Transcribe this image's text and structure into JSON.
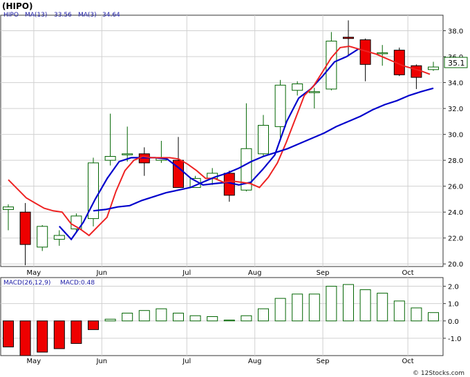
{
  "header": {
    "title": "(HIPO)",
    "main_legend": {
      "symbol": "HIPO",
      "ma13_label": "MA(13)",
      "ma13_value": "33.56",
      "ma3_label": "MA(3)",
      "ma3_value": "34.64"
    },
    "macd_legend": {
      "label": "MACD(26,12,9)",
      "value_label": "MACD:0.48"
    },
    "last_price_badge": "35.1",
    "watermark": "© 12Stocks.com"
  },
  "colors": {
    "up_candle_border": "#006400",
    "down_candle_fill": "#ee0000",
    "ma13": "#0000cc",
    "ma3": "#ee2222",
    "macd_bar_border": "#006400",
    "macd_negative_fill": "#ee0000",
    "grid": "#d0d0d0",
    "legend_text": "#1a1aa6"
  },
  "chart_data": [
    {
      "type": "candlestick",
      "title": "HIPO",
      "ylim": [
        19.8,
        39.2
      ],
      "y_ticks": [
        20.0,
        22.0,
        24.0,
        26.0,
        28.0,
        30.0,
        32.0,
        34.0,
        36.0,
        38.0
      ],
      "y_tick_labels": [
        "20.0",
        "22.0",
        "24.0",
        "26.0",
        "28.0",
        "30.0",
        "32.0",
        "34.0",
        "36.0",
        "38.0"
      ],
      "x_ticks": [
        "May",
        "Jun",
        "Jul",
        "Aug",
        "Sep",
        "Oct"
      ],
      "x_tick_positions": [
        1.5,
        5.5,
        10.5,
        14.5,
        18.5,
        23.5
      ],
      "grid": true,
      "candles": [
        {
          "open": 24.2,
          "high": 24.6,
          "low": 22.6,
          "close": 24.4
        },
        {
          "open": 24.0,
          "high": 24.7,
          "low": 19.9,
          "close": 21.5
        },
        {
          "open": 21.3,
          "high": 23.0,
          "low": 21.0,
          "close": 22.9
        },
        {
          "open": 21.9,
          "high": 22.6,
          "low": 21.4,
          "close": 22.2
        },
        {
          "open": 22.7,
          "high": 23.9,
          "low": 22.4,
          "close": 23.7
        },
        {
          "open": 23.5,
          "high": 28.2,
          "low": 22.9,
          "close": 27.8
        },
        {
          "open": 28.0,
          "high": 31.6,
          "low": 27.6,
          "close": 28.3
        },
        {
          "open": 28.5,
          "high": 30.6,
          "low": 27.9,
          "close": 28.5
        },
        {
          "open": 28.5,
          "high": 29.0,
          "low": 26.8,
          "close": 27.8
        },
        {
          "open": 28.0,
          "high": 29.5,
          "low": 27.8,
          "close": 28.2
        },
        {
          "open": 28.0,
          "high": 29.8,
          "low": 25.9,
          "close": 25.9
        },
        {
          "open": 25.9,
          "high": 26.8,
          "low": 25.9,
          "close": 26.6
        },
        {
          "open": 26.6,
          "high": 27.4,
          "low": 26.1,
          "close": 27.0
        },
        {
          "open": 27.0,
          "high": 27.2,
          "low": 24.8,
          "close": 25.3
        },
        {
          "open": 25.7,
          "high": 32.4,
          "low": 25.6,
          "close": 28.9
        },
        {
          "open": 28.5,
          "high": 31.5,
          "low": 28.3,
          "close": 30.7
        },
        {
          "open": 30.6,
          "high": 34.2,
          "low": 29.7,
          "close": 33.8
        },
        {
          "open": 33.4,
          "high": 34.1,
          "low": 33.0,
          "close": 33.9
        },
        {
          "open": 33.3,
          "high": 33.6,
          "low": 32.0,
          "close": 33.3
        },
        {
          "open": 33.5,
          "high": 37.9,
          "low": 33.4,
          "close": 37.2
        },
        {
          "open": 37.5,
          "high": 38.8,
          "low": 36.1,
          "close": 37.4
        },
        {
          "open": 37.3,
          "high": 37.4,
          "low": 34.1,
          "close": 35.4
        },
        {
          "open": 36.3,
          "high": 36.9,
          "low": 35.3,
          "close": 36.3
        },
        {
          "open": 36.5,
          "high": 36.7,
          "low": 34.5,
          "close": 34.6
        },
        {
          "open": 35.3,
          "high": 35.4,
          "low": 33.5,
          "close": 34.4
        },
        {
          "open": 35.0,
          "high": 35.6,
          "low": 34.9,
          "close": 35.2
        }
      ],
      "series": [
        {
          "name": "MA(3)",
          "color": "#ee2222",
          "start": 0,
          "values": [
            26.5,
            25.8,
            25.1,
            24.7,
            24.3,
            24.1,
            24.0,
            23.1,
            22.7,
            22.2,
            22.9,
            23.6,
            25.6,
            27.2,
            28.0,
            28.3,
            28.2,
            28.2,
            28.2,
            28.1,
            27.7,
            27.2,
            26.6,
            26.6,
            26.3,
            26.4,
            26.3,
            26.2,
            25.9,
            26.7,
            27.8,
            29.4,
            31.2,
            33.0,
            33.7,
            34.8,
            35.9,
            36.7,
            36.8,
            36.6,
            36.4,
            36.2,
            35.9,
            35.6,
            35.3,
            35.1,
            34.9,
            34.64
          ]
        },
        {
          "name": "MA(13)",
          "color": "#0000cc",
          "start": 7,
          "values": [
            22.9,
            21.9,
            23.2,
            25.0,
            26.6,
            27.9,
            28.2,
            28.2,
            28.2,
            28.1,
            27.4,
            26.6,
            26.1,
            26.2,
            26.3,
            26.1,
            26.3,
            27.3,
            28.4,
            31.0,
            32.8,
            33.5,
            34.5,
            35.6,
            36.0,
            36.6
          ],
          "mid_slow": [
            24.1,
            24.2,
            24.4,
            24.5,
            24.9,
            25.2,
            25.5,
            25.7,
            25.9,
            26.3,
            26.7,
            27.0,
            27.4,
            27.9,
            28.3,
            28.6,
            28.9,
            29.3,
            29.7,
            30.1,
            30.6,
            31.0,
            31.4,
            31.9,
            32.3,
            32.6,
            33.0,
            33.3,
            33.56
          ]
        }
      ]
    },
    {
      "type": "bar",
      "title": "MACD(26,12,9)",
      "ylim": [
        -2.0,
        2.5
      ],
      "y_ticks": [
        -1.0,
        0.0,
        1.0,
        2.0
      ],
      "y_tick_labels": [
        "-1.0",
        "0.0",
        "1.0",
        "2.0"
      ],
      "x_ticks": [
        "May",
        "Jun",
        "Jul",
        "Aug",
        "Sep",
        "Oct"
      ],
      "values": [
        -1.5,
        -2.0,
        -1.8,
        -1.6,
        -1.3,
        -0.5,
        0.1,
        0.45,
        0.6,
        0.7,
        0.45,
        0.3,
        0.25,
        0.05,
        0.3,
        0.7,
        1.3,
        1.55,
        1.55,
        2.0,
        2.1,
        1.8,
        1.6,
        1.15,
        0.75,
        0.48
      ],
      "grid": true
    }
  ]
}
